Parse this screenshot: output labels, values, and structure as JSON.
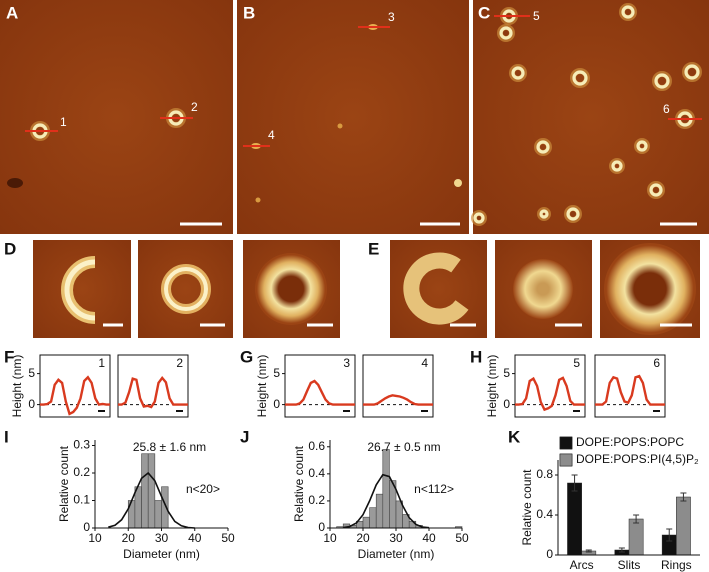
{
  "panel_labels": [
    "A",
    "B",
    "C",
    "D",
    "E",
    "F",
    "G",
    "H",
    "I",
    "J",
    "K"
  ],
  "afm_markers": [
    "1",
    "2",
    "3",
    "4",
    "5",
    "6"
  ],
  "chart_data": [
    {
      "type": "line",
      "label": "1",
      "ylabel": "Height (nm)",
      "color": "#d93a1f",
      "zero_line": true,
      "x": [
        0,
        3,
        6,
        9,
        12,
        15,
        18,
        21,
        24,
        27,
        30,
        33,
        36,
        39,
        42,
        45,
        48,
        51,
        54,
        57
      ],
      "xlim": [
        0,
        57
      ],
      "ylim": [
        -2,
        8
      ],
      "yticks": [
        0,
        5
      ],
      "values": [
        0,
        0,
        0.1,
        0.5,
        3.2,
        4,
        3.5,
        0.5,
        -1.5,
        -1.2,
        -0.5,
        1,
        3.8,
        4.4,
        3.5,
        1,
        0,
        0.1,
        0,
        0
      ]
    },
    {
      "type": "line",
      "label": "2",
      "color": "#d93a1f",
      "zero_line": true,
      "x": [
        0,
        3,
        6,
        9,
        12,
        15,
        18,
        21,
        24,
        27,
        30,
        33,
        36,
        39,
        42,
        45,
        48,
        51,
        54,
        57
      ],
      "xlim": [
        0,
        57
      ],
      "ylim": [
        -2,
        8
      ],
      "values": [
        0,
        0,
        0.3,
        2,
        4.2,
        4,
        1,
        -0.3,
        -0.2,
        -0.4,
        0.5,
        3.5,
        4.3,
        3.6,
        1,
        0,
        0,
        0,
        0,
        0
      ]
    },
    {
      "type": "line",
      "label": "3",
      "ylabel": "Height (nm)",
      "color": "#d93a1f",
      "zero_line": true,
      "x": [
        0,
        3,
        6,
        9,
        12,
        15,
        18,
        21,
        24,
        27,
        30,
        33,
        36,
        39,
        42,
        45,
        48,
        51,
        54,
        57
      ],
      "xlim": [
        0,
        57
      ],
      "ylim": [
        -2,
        8
      ],
      "yticks": [
        0,
        5
      ],
      "values": [
        0,
        0,
        0,
        0,
        0.2,
        0.8,
        2.2,
        3.5,
        3.8,
        3.2,
        2,
        0.8,
        0.2,
        0,
        0,
        0,
        0,
        0,
        0,
        0
      ]
    },
    {
      "type": "line",
      "label": "4",
      "color": "#d93a1f",
      "zero_line": true,
      "x": [
        0,
        3,
        6,
        9,
        12,
        15,
        18,
        21,
        24,
        27,
        30,
        33,
        36,
        39,
        42,
        45,
        48,
        51,
        54,
        57
      ],
      "xlim": [
        0,
        57
      ],
      "ylim": [
        -2,
        8
      ],
      "values": [
        0,
        0,
        0,
        0,
        0.2,
        0.6,
        1,
        1.3,
        1.5,
        1.4,
        1.3,
        1.1,
        0.8,
        0.4,
        0.1,
        0,
        0,
        0,
        0,
        0
      ]
    },
    {
      "type": "line",
      "label": "5",
      "ylabel": "Height (nm)",
      "color": "#d93a1f",
      "zero_line": true,
      "x": [
        0,
        3,
        6,
        9,
        12,
        15,
        18,
        21,
        24,
        27,
        30,
        33,
        36,
        39,
        42,
        45,
        48,
        51,
        54,
        57
      ],
      "xlim": [
        0,
        57
      ],
      "ylim": [
        -2,
        8
      ],
      "yticks": [
        0,
        5
      ],
      "values": [
        0,
        0,
        0.1,
        1,
        3.8,
        4.2,
        3,
        0.4,
        -0.8,
        -0.6,
        -0.2,
        1.5,
        4,
        4.3,
        3,
        0.6,
        0,
        0,
        0,
        0
      ]
    },
    {
      "type": "line",
      "label": "6",
      "color": "#d93a1f",
      "zero_line": true,
      "x": [
        0,
        3,
        6,
        9,
        12,
        15,
        18,
        21,
        24,
        27,
        30,
        33,
        36,
        39,
        42,
        45,
        48,
        51,
        54,
        57
      ],
      "xlim": [
        0,
        57
      ],
      "ylim": [
        -2,
        8
      ],
      "values": [
        0,
        0,
        0,
        0.5,
        3.5,
        4.4,
        4.2,
        2,
        0.5,
        0.3,
        1.5,
        4.4,
        4.6,
        3.5,
        0.8,
        0,
        0,
        0,
        0,
        0
      ]
    },
    {
      "type": "histogram",
      "xlabel": "Diameter (nm)",
      "ylabel": "Relative count",
      "annotations": [
        "25.8 ± 1.6 nm",
        "n<20>"
      ],
      "color": "#9a9a9a",
      "bins": [
        20,
        22,
        24,
        26,
        28,
        30,
        32
      ],
      "values": [
        0.1,
        0.15,
        0.27,
        0.27,
        0.1,
        0.15
      ],
      "xlim": [
        10,
        50
      ],
      "xticks": [
        10,
        20,
        30,
        40,
        50
      ],
      "ylim": [
        0,
        0.32
      ],
      "yticks": [
        0,
        0.1,
        0.2,
        0.3
      ],
      "fit": {
        "x": [
          14,
          16,
          18,
          20,
          22,
          24,
          26,
          28,
          30,
          32,
          34,
          36,
          38,
          40
        ],
        "y": [
          0.003,
          0.01,
          0.03,
          0.07,
          0.128,
          0.181,
          0.2,
          0.172,
          0.115,
          0.06,
          0.024,
          0.008,
          0.002,
          0
        ]
      }
    },
    {
      "type": "histogram",
      "xlabel": "Diameter (nm)",
      "ylabel": "Relative count",
      "annotations": [
        "26.7 ± 0.5 nm",
        "n<112>"
      ],
      "color": "#9a9a9a",
      "bins": [
        12,
        14,
        16,
        18,
        20,
        22,
        24,
        26,
        28,
        30,
        32,
        34,
        36,
        38,
        40,
        42,
        44,
        46,
        48,
        50
      ],
      "values": [
        0.01,
        0.03,
        0.02,
        0.05,
        0.08,
        0.15,
        0.25,
        0.58,
        0.35,
        0.2,
        0.1,
        0.05,
        0.02,
        0,
        0,
        0,
        0,
        0,
        0.01
      ],
      "xlim": [
        10,
        50
      ],
      "xticks": [
        10,
        20,
        30,
        40,
        50
      ],
      "ylim": [
        0,
        0.65
      ],
      "yticks": [
        0,
        0.2,
        0.4,
        0.6
      ],
      "fit": {
        "x": [
          14,
          16,
          18,
          20,
          22,
          24,
          26,
          28,
          30,
          32,
          34,
          36,
          38,
          40
        ],
        "y": [
          0.003,
          0.011,
          0.037,
          0.098,
          0.2,
          0.318,
          0.394,
          0.38,
          0.285,
          0.166,
          0.076,
          0.027,
          0.007,
          0.002
        ]
      }
    },
    {
      "type": "bar",
      "ylabel": "Relative count",
      "categories": [
        "Arcs",
        "Slits",
        "Rings"
      ],
      "series": [
        {
          "name": "DOPE:POPS:POPC",
          "color": "#111111",
          "values": [
            0.72,
            0.05,
            0.2
          ],
          "errors": [
            0.08,
            0.02,
            0.06
          ]
        },
        {
          "name": "DOPE:POPS:PI(4,5)P₂",
          "color": "#8c8c8c",
          "values": [
            0.04,
            0.36,
            0.58
          ],
          "errors": [
            0.01,
            0.04,
            0.04
          ]
        }
      ],
      "ylim": [
        0,
        0.95
      ],
      "yticks": [
        0,
        0.4,
        0.8
      ]
    }
  ]
}
